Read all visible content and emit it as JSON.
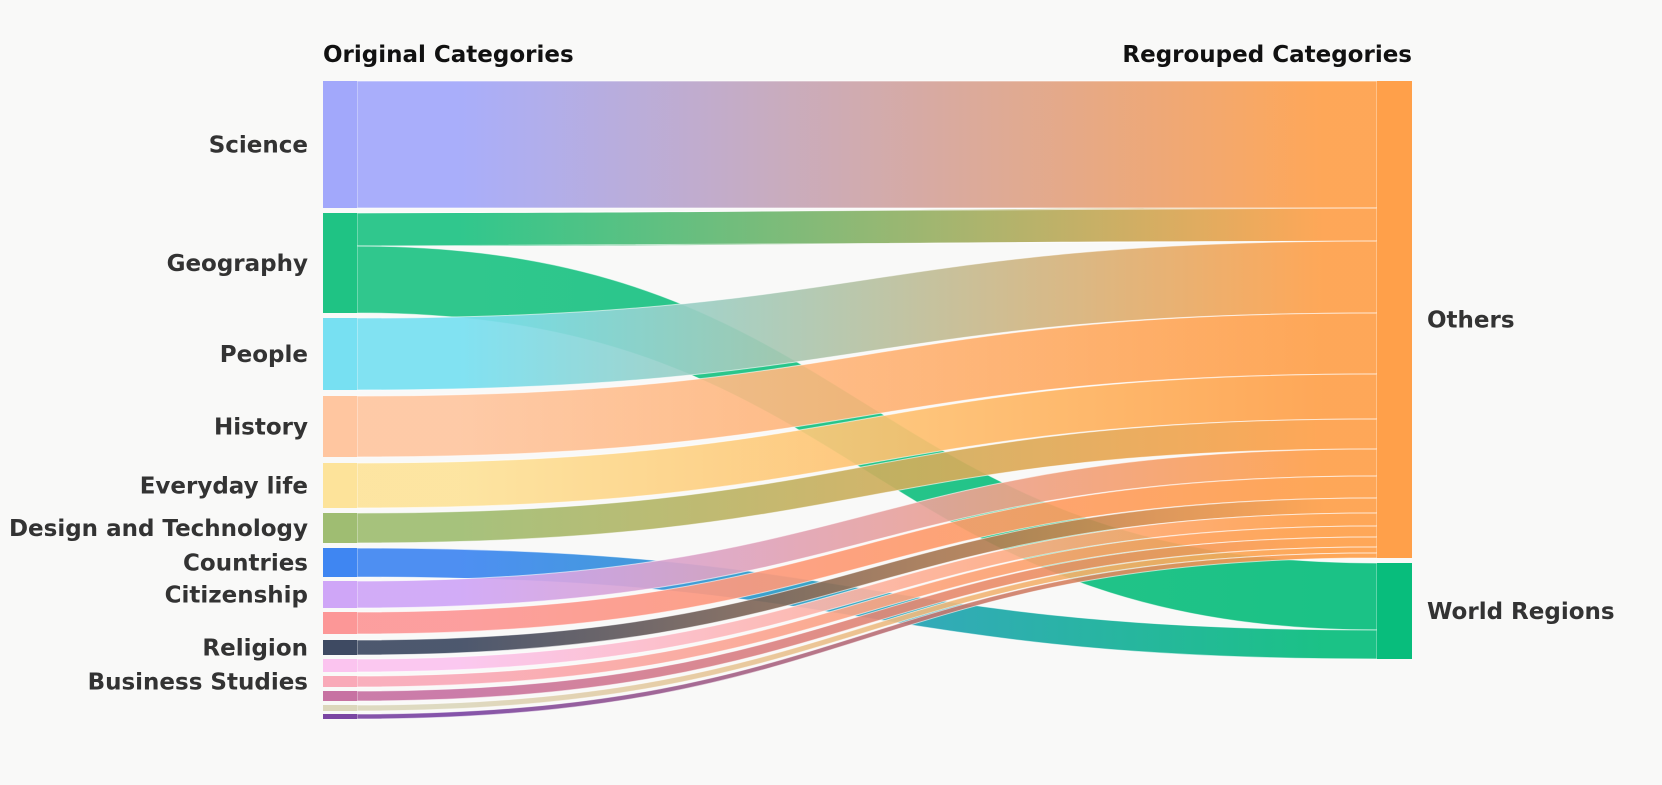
{
  "chart_data": {
    "type": "sankey",
    "headers": {
      "left": "Original Categories",
      "right": "Regrouped Categories"
    },
    "sources": [
      {
        "name": "Science",
        "color": "#a2a8fb",
        "label": "Science"
      },
      {
        "name": "Geography",
        "color": "#1fc384",
        "label": "Geography"
      },
      {
        "name": "People",
        "color": "#77e0f2",
        "label": "People"
      },
      {
        "name": "History",
        "color": "#ffc6a0",
        "label": "History"
      },
      {
        "name": "Everyday life",
        "color": "#fde39a",
        "label": "Everyday life"
      },
      {
        "name": "Design and Technology",
        "color": "#9fbd72",
        "label": "Design and Technology"
      },
      {
        "name": "Countries",
        "color": "#3f86f2",
        "label": "Countries"
      },
      {
        "name": "Citizenship",
        "color": "#cfa6f7",
        "label": "Citizenship"
      },
      {
        "name": "Unlabeled-9",
        "color": "#fc9797",
        "label": ""
      },
      {
        "name": "Religion",
        "color": "#3e4a62",
        "label": "Religion"
      },
      {
        "name": "Unlabeled-11",
        "color": "#fbc4ef",
        "label": ""
      },
      {
        "name": "Business Studies",
        "color": "#f9a9b8",
        "label": "Business Studies"
      },
      {
        "name": "Unlabeled-13",
        "color": "#c772a2",
        "label": ""
      },
      {
        "name": "Unlabeled-14",
        "color": "#dcd7bc",
        "label": ""
      },
      {
        "name": "Unlabeled-15",
        "color": "#7b46a3",
        "label": ""
      }
    ],
    "targets": [
      {
        "name": "Others",
        "color": "#ffa04a",
        "label": "Others"
      },
      {
        "name": "World Regions",
        "color": "#08bd7c",
        "label": "World Regions"
      }
    ],
    "links": [
      {
        "source": "Science",
        "target": "Others",
        "value": 127
      },
      {
        "source": "Geography",
        "target": "Others",
        "value": 33
      },
      {
        "source": "Geography",
        "target": "World Regions",
        "value": 67
      },
      {
        "source": "People",
        "target": "Others",
        "value": 72
      },
      {
        "source": "History",
        "target": "Others",
        "value": 61
      },
      {
        "source": "Everyday life",
        "target": "Others",
        "value": 45
      },
      {
        "source": "Design and Technology",
        "target": "Others",
        "value": 30
      },
      {
        "source": "Countries",
        "target": "World Regions",
        "value": 29
      },
      {
        "source": "Citizenship",
        "target": "Others",
        "value": 27
      },
      {
        "source": "Unlabeled-9",
        "target": "Others",
        "value": 22
      },
      {
        "source": "Religion",
        "target": "Others",
        "value": 15
      },
      {
        "source": "Unlabeled-11",
        "target": "Others",
        "value": 13
      },
      {
        "source": "Business Studies",
        "target": "Others",
        "value": 11
      },
      {
        "source": "Unlabeled-13",
        "target": "Others",
        "value": 10
      },
      {
        "source": "Unlabeled-14",
        "target": "Others",
        "value": 6
      },
      {
        "source": "Unlabeled-15",
        "target": "Others",
        "value": 5
      }
    ]
  }
}
